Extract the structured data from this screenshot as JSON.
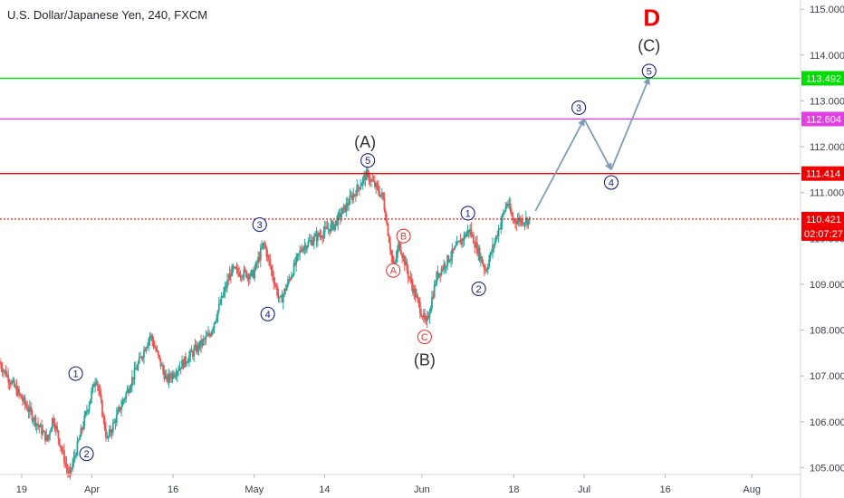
{
  "header": {
    "title": "U.S. Dollar/Japanese Yen, 240, FXCM"
  },
  "chart_data": {
    "type": "candlestick",
    "symbol": "U.S. Dollar/Japanese Yen",
    "interval": "240",
    "source": "FXCM",
    "ylim": [
      104.85,
      115.2
    ],
    "y_ticks": [
      "105.000",
      "106.000",
      "107.000",
      "108.000",
      "109.000",
      "110.000",
      "111.000",
      "112.000",
      "113.000",
      "114.000",
      "115.000"
    ],
    "x_ticks": [
      {
        "label": "19",
        "day": 0
      },
      {
        "label": "Apr",
        "day": 13
      },
      {
        "label": "16",
        "day": 28
      },
      {
        "label": "May",
        "day": 43
      },
      {
        "label": "14",
        "day": 56
      },
      {
        "label": "Jun",
        "day": 74
      },
      {
        "label": "18",
        "day": 91
      },
      {
        "label": "Jul",
        "day": 104
      },
      {
        "label": "16",
        "day": 119
      },
      {
        "label": "Aug",
        "day": 135
      }
    ],
    "x_range_days": [
      -4,
      144
    ],
    "path_anchors": [
      {
        "day": -4,
        "price": 107.3
      },
      {
        "day": 5,
        "price": 105.6
      },
      {
        "day": 6,
        "price": 106.1
      },
      {
        "day": 9,
        "price": 104.8
      },
      {
        "day": 14,
        "price": 107.0
      },
      {
        "day": 16,
        "price": 105.6
      },
      {
        "day": 24,
        "price": 107.9
      },
      {
        "day": 27,
        "price": 106.9
      },
      {
        "day": 35,
        "price": 107.9
      },
      {
        "day": 39,
        "price": 109.3
      },
      {
        "day": 43,
        "price": 109.2
      },
      {
        "day": 45,
        "price": 109.9
      },
      {
        "day": 48,
        "price": 108.6
      },
      {
        "day": 52,
        "price": 109.8
      },
      {
        "day": 58,
        "price": 110.3
      },
      {
        "day": 64,
        "price": 111.4
      },
      {
        "day": 67,
        "price": 110.9
      },
      {
        "day": 69,
        "price": 109.3
      },
      {
        "day": 70,
        "price": 109.9
      },
      {
        "day": 72,
        "price": 109.1
      },
      {
        "day": 75,
        "price": 108.1
      },
      {
        "day": 77,
        "price": 109.2
      },
      {
        "day": 83,
        "price": 110.2
      },
      {
        "day": 86,
        "price": 109.3
      },
      {
        "day": 90,
        "price": 110.8
      },
      {
        "day": 91,
        "price": 110.4
      },
      {
        "day": 94,
        "price": 110.4
      }
    ],
    "horizontal_levels": [
      {
        "price": 113.492,
        "label": "113.492",
        "color": "#00dd00",
        "style": "solid"
      },
      {
        "price": 112.604,
        "label": "112.604",
        "color": "#e040e0",
        "style": "solid"
      },
      {
        "price": 111.414,
        "label": "111.414",
        "color": "#ee0000",
        "style": "solid"
      },
      {
        "price": 110.421,
        "label": "110.421",
        "color": "#ee0000",
        "style": "dotted"
      }
    ],
    "countdown": {
      "label": "02:07:27",
      "color": "#ee0000"
    },
    "projection": [
      {
        "day": 95,
        "price": 110.6
      },
      {
        "day": 104,
        "price": 112.6
      },
      {
        "day": 109,
        "price": 111.5
      },
      {
        "day": 116,
        "price": 113.5
      }
    ],
    "wave_labels": {
      "circled": [
        {
          "text": "1",
          "day": 10,
          "price": 107.05,
          "color": "#1a237e"
        },
        {
          "text": "2",
          "day": 12,
          "price": 105.3,
          "color": "#1a237e"
        },
        {
          "text": "3",
          "day": 44,
          "price": 110.3,
          "color": "#1a237e"
        },
        {
          "text": "4",
          "day": 45.5,
          "price": 108.35,
          "color": "#1a237e"
        },
        {
          "text": "5",
          "day": 64,
          "price": 111.7,
          "color": "#1a237e"
        },
        {
          "text": "A",
          "day": 68.7,
          "price": 109.3,
          "color": "#e53935"
        },
        {
          "text": "B",
          "day": 70.6,
          "price": 110.05,
          "color": "#e53935"
        },
        {
          "text": "C",
          "day": 74.5,
          "price": 107.85,
          "color": "#e53935"
        },
        {
          "text": "1",
          "day": 82.5,
          "price": 110.55,
          "color": "#1a237e"
        },
        {
          "text": "2",
          "day": 84.5,
          "price": 108.9,
          "color": "#1a237e"
        },
        {
          "text": "3",
          "day": 103,
          "price": 112.85,
          "color": "#1a237e"
        },
        {
          "text": "4",
          "day": 109,
          "price": 111.22,
          "color": "#1a237e"
        },
        {
          "text": "5",
          "day": 116,
          "price": 113.65,
          "color": "#1a237e"
        }
      ],
      "plain": [
        {
          "text": "(A)",
          "day": 63.5,
          "price": 112.1,
          "color": "#333333"
        },
        {
          "text": "(B)",
          "day": 74.5,
          "price": 107.35,
          "color": "#333333"
        },
        {
          "text": "(C)",
          "day": 116,
          "price": 114.2,
          "color": "#333333"
        }
      ],
      "highlight": {
        "text": "D",
        "day": 116.5,
        "price": 114.85,
        "color": "#ee0000"
      }
    },
    "colors": {
      "up": "#26a69a",
      "down": "#ef5350",
      "projection": "#7f9bb5",
      "axis_text": "#3a3e4a"
    }
  }
}
